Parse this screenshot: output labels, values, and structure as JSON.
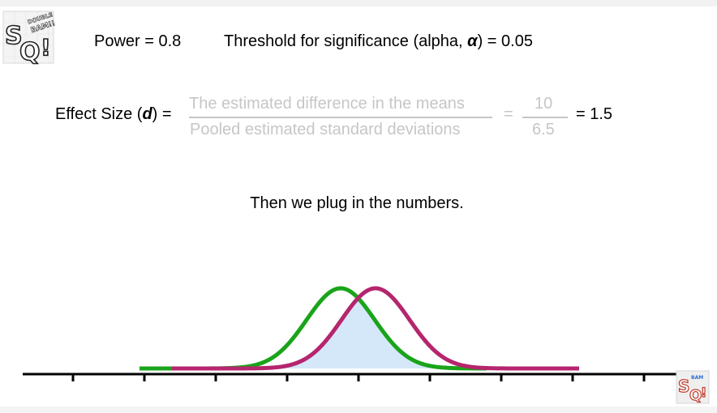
{
  "header": {
    "power_text": "Power = 0.8",
    "threshold_prefix": "Threshold for significance (alpha, ",
    "alpha_symbol": "α",
    "threshold_suffix": ") = 0.05"
  },
  "effect_size": {
    "label_prefix": "Effect Size (",
    "label_symbol": "d",
    "label_suffix": ") =",
    "fraction_text_numerator": "The estimated difference in the means",
    "fraction_text_denominator": "Pooled estimated standard deviations",
    "equals": "=",
    "fraction_value_numerator": "10",
    "fraction_value_denominator": "6.5",
    "result": "= 1.5"
  },
  "caption": "Then we plug in the numbers.",
  "logo": {
    "top_left_text": "SQ!",
    "top_left_subtext": "DOUBLE BAM!!",
    "bottom_right_text": "SQ!"
  },
  "colors": {
    "green_curve": "#1aa41a",
    "magenta_curve": "#b5266e",
    "overlap_fill": "#d5e8f9",
    "axis": "#000000",
    "faded_text": "#c6c6c6"
  }
}
